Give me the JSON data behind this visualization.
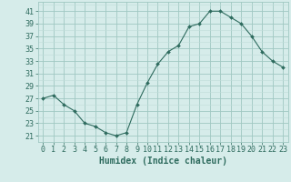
{
  "x": [
    0,
    1,
    2,
    3,
    4,
    5,
    6,
    7,
    8,
    9,
    10,
    11,
    12,
    13,
    14,
    15,
    16,
    17,
    18,
    19,
    20,
    21,
    22,
    23
  ],
  "y": [
    27,
    27.5,
    26,
    25,
    23,
    22.5,
    21.5,
    21,
    21.5,
    26,
    29.5,
    32.5,
    34.5,
    35.5,
    38.5,
    39,
    41,
    41,
    40,
    39,
    37,
    34.5,
    33,
    32
  ],
  "line_color": "#2e6b5e",
  "marker_color": "#2e6b5e",
  "bg_color": "#d6ecea",
  "grid_minor_color": "#c0ddd9",
  "grid_major_color": "#a0c8c2",
  "xlabel": "Humidex (Indice chaleur)",
  "yticks": [
    21,
    23,
    25,
    27,
    29,
    31,
    33,
    35,
    37,
    39,
    41
  ],
  "ylim": [
    20.0,
    42.5
  ],
  "xlim": [
    -0.5,
    23.5
  ],
  "xlabel_fontsize": 7,
  "tick_fontsize": 6
}
